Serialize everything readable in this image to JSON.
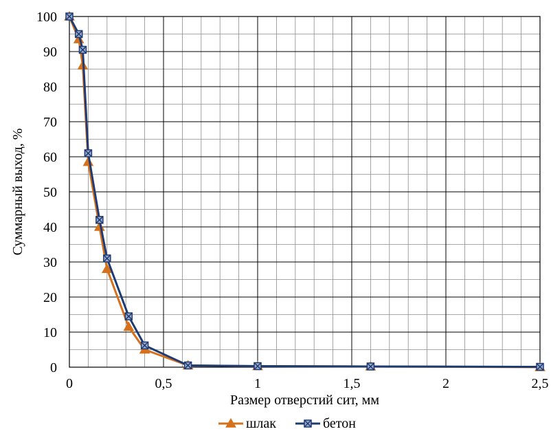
{
  "chart_data": {
    "type": "line",
    "title": "",
    "xlabel": "Размер отверстий сит, мм",
    "ylabel": "Суммарный выход, %",
    "xlim": [
      0,
      2.5
    ],
    "ylim": [
      0,
      100
    ],
    "x_ticks": [
      0,
      0.5,
      1,
      1.5,
      2,
      2.5
    ],
    "x_tick_labels": [
      "0",
      "0,5",
      "1",
      "1,5",
      "2",
      "2,5"
    ],
    "y_ticks": [
      0,
      10,
      20,
      30,
      40,
      50,
      60,
      70,
      80,
      90,
      100
    ],
    "y_tick_labels": [
      "0",
      "10",
      "20",
      "30",
      "40",
      "50",
      "60",
      "70",
      "80",
      "90",
      "100"
    ],
    "grid": true,
    "legend_position": "bottom",
    "series": [
      {
        "name": "шлак",
        "color": "#d5711c",
        "marker": "triangle",
        "x": [
          0,
          0.05,
          0.071,
          0.1,
          0.16,
          0.2,
          0.315,
          0.4,
          0.63,
          1,
          1.6,
          2.5
        ],
        "y": [
          100,
          93.5,
          86,
          58.5,
          40,
          28,
          11.5,
          5,
          0.5,
          0.3,
          0.2,
          0
        ]
      },
      {
        "name": "бетон",
        "color": "#1f3b73",
        "marker": "x-square",
        "x": [
          0,
          0.05,
          0.071,
          0.1,
          0.16,
          0.2,
          0.315,
          0.4,
          0.63,
          1,
          1.6,
          2.5
        ],
        "y": [
          100,
          95,
          90.5,
          61,
          42,
          31,
          14.5,
          6.2,
          0.5,
          0.3,
          0.2,
          0.1
        ]
      }
    ]
  }
}
